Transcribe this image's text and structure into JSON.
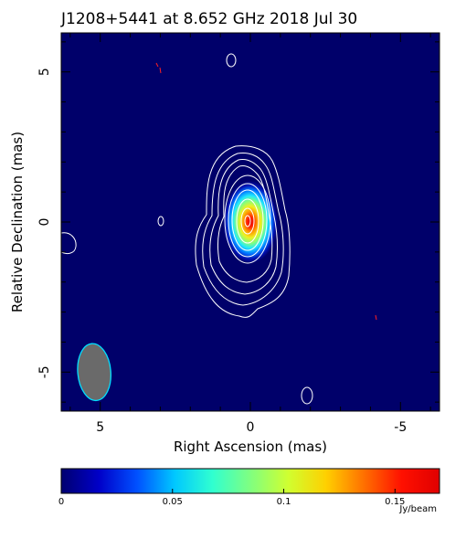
{
  "chart_data": {
    "type": "heatmap",
    "title": "J1208+5441 at 8.652 GHz 2018 Jul 30",
    "xlabel": "Right Ascension  (mas)",
    "ylabel": "Relative Declination  (mas)",
    "xlim": [
      6.3,
      -6.3
    ],
    "ylim": [
      -6.3,
      6.3
    ],
    "xticks": [
      {
        "value": 5,
        "label": "5"
      },
      {
        "value": 0,
        "label": "0"
      },
      {
        "value": -5,
        "label": "-5"
      }
    ],
    "yticks": [
      {
        "value": 5,
        "label": "5"
      },
      {
        "value": 0,
        "label": "0"
      },
      {
        "value": -5,
        "label": "-5"
      }
    ],
    "background_color": "#00006a",
    "contour_color": "#ffffff",
    "colorbar": {
      "min": 0,
      "max": 0.17,
      "unit": "Jy/beam",
      "ticks": [
        {
          "value": 0,
          "label": "0"
        },
        {
          "value": 0.05,
          "label": "0.05"
        },
        {
          "value": 0.1,
          "label": "0.1"
        },
        {
          "value": 0.15,
          "label": "0.15"
        }
      ],
      "colors": [
        "#000070",
        "#0000c8",
        "#0050ff",
        "#00c8ff",
        "#30ffd0",
        "#80ff80",
        "#d0ff30",
        "#ffd000",
        "#ff7000",
        "#ff1000",
        "#e00000"
      ]
    },
    "source": {
      "peak_flux": 0.17,
      "peak_position": [
        0,
        0
      ],
      "major_axis_mas": 2.2,
      "minor_axis_mas": 1.3,
      "position_angle_deg": 0
    },
    "beam": {
      "center": [
        5.2,
        -5.0
      ],
      "major_mas": 1.9,
      "minor_mas": 1.1,
      "position_angle_deg": -5,
      "fill": "#6a6a6a",
      "edge": "#00e0ff"
    }
  }
}
